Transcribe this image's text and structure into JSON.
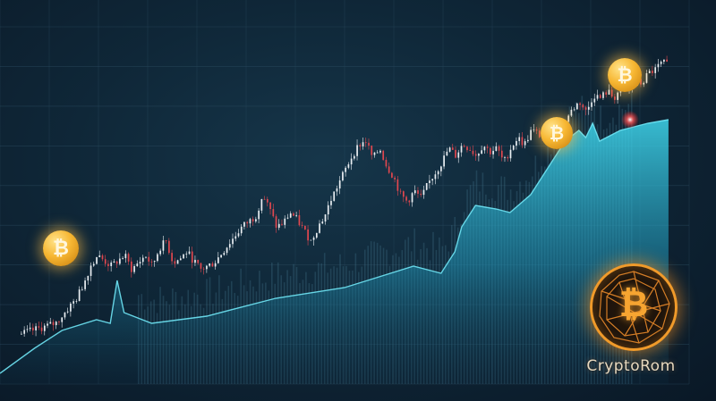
{
  "chart_data": {
    "type": "candlestick",
    "title": "",
    "xlabel": "",
    "ylabel": "",
    "grid": true,
    "legend": "none",
    "colors": {
      "up": "#e9eef2",
      "down": "#e0474f",
      "area": "#2ec4dd",
      "volume": "#3f6f86",
      "grid": "#2a4a5e"
    },
    "ylim": [
      0,
      100
    ],
    "xlim": [
      0,
      100
    ],
    "close_trace": [
      [
        3,
        14
      ],
      [
        8,
        17
      ],
      [
        11,
        24
      ],
      [
        12,
        28
      ],
      [
        13,
        33
      ],
      [
        14,
        36
      ],
      [
        16,
        33
      ],
      [
        18,
        36
      ],
      [
        19,
        32
      ],
      [
        21,
        36
      ],
      [
        22,
        33
      ],
      [
        23,
        38
      ],
      [
        24,
        40
      ],
      [
        25,
        34
      ],
      [
        26,
        35
      ],
      [
        27,
        37
      ],
      [
        29,
        32
      ],
      [
        31,
        34
      ],
      [
        33,
        39
      ],
      [
        35,
        44
      ],
      [
        37,
        47
      ],
      [
        38,
        53
      ],
      [
        39,
        49
      ],
      [
        40,
        44
      ],
      [
        41,
        45
      ],
      [
        42,
        48
      ],
      [
        43,
        46
      ],
      [
        44,
        43
      ],
      [
        45,
        40
      ],
      [
        46,
        44
      ],
      [
        47,
        47
      ],
      [
        48,
        52
      ],
      [
        49,
        56
      ],
      [
        50,
        60
      ],
      [
        51,
        64
      ],
      [
        52,
        67
      ],
      [
        53,
        68
      ],
      [
        54,
        63
      ],
      [
        55,
        66
      ],
      [
        56,
        61
      ],
      [
        57,
        58
      ],
      [
        58,
        53
      ],
      [
        59,
        51
      ],
      [
        60,
        54
      ],
      [
        61,
        52
      ],
      [
        62,
        56
      ],
      [
        63,
        59
      ],
      [
        64,
        62
      ],
      [
        65,
        66
      ],
      [
        66,
        64
      ],
      [
        67,
        67
      ],
      [
        68,
        66
      ],
      [
        69,
        64
      ],
      [
        70,
        67
      ],
      [
        71,
        65
      ],
      [
        72,
        66
      ],
      [
        73,
        62
      ],
      [
        74,
        66
      ],
      [
        75,
        69
      ],
      [
        76,
        67
      ],
      [
        77,
        71
      ],
      [
        78,
        70
      ],
      [
        79,
        68
      ],
      [
        80,
        72
      ],
      [
        81,
        71
      ],
      [
        82,
        74
      ],
      [
        83,
        77
      ],
      [
        84,
        79
      ],
      [
        85,
        76
      ],
      [
        86,
        81
      ],
      [
        87,
        80
      ],
      [
        88,
        82
      ],
      [
        89,
        80
      ],
      [
        90,
        83
      ],
      [
        91,
        82
      ],
      [
        92,
        85
      ],
      [
        93,
        84
      ],
      [
        94,
        87
      ],
      [
        95,
        88
      ],
      [
        96,
        90
      ],
      [
        97,
        89
      ]
    ],
    "area_trace": [
      [
        0,
        3
      ],
      [
        5,
        10
      ],
      [
        9,
        15
      ],
      [
        14,
        18
      ],
      [
        16,
        17
      ],
      [
        17,
        29
      ],
      [
        18,
        20
      ],
      [
        22,
        17
      ],
      [
        30,
        19
      ],
      [
        40,
        24
      ],
      [
        50,
        27
      ],
      [
        55,
        30
      ],
      [
        60,
        33
      ],
      [
        64,
        31
      ],
      [
        66,
        37
      ],
      [
        67,
        44
      ],
      [
        69,
        50
      ],
      [
        72,
        49
      ],
      [
        74,
        48
      ],
      [
        77,
        53
      ],
      [
        80,
        62
      ],
      [
        82,
        68
      ],
      [
        84,
        71
      ],
      [
        85,
        69
      ],
      [
        86,
        73
      ],
      [
        87,
        68
      ],
      [
        90,
        71
      ],
      [
        94,
        73
      ],
      [
        97,
        74
      ]
    ],
    "x_tick_labels": [
      "",
      "",
      "",
      "",
      "",
      "",
      "",
      "",
      "",
      "",
      "",
      "",
      "",
      "",
      ""
    ],
    "y_tick_labels": [
      "",
      "",
      "",
      "",
      "",
      "",
      "",
      "",
      "",
      ""
    ]
  },
  "coins": [
    {
      "name": "coin-left",
      "symbol": "₿"
    },
    {
      "name": "coin-middle",
      "symbol": "₿"
    },
    {
      "name": "coin-top-right",
      "symbol": "₿"
    }
  ],
  "emblem": {
    "symbol": "₿"
  },
  "brand": {
    "text": "CryptoRom"
  }
}
